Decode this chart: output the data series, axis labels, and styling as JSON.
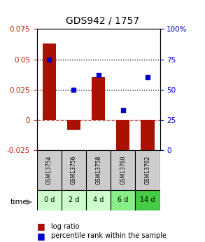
{
  "title": "GDS942 / 1757",
  "samples": [
    "GSM13754",
    "GSM13756",
    "GSM13758",
    "GSM13760",
    "GSM13762"
  ],
  "time_labels": [
    "0 d",
    "2 d",
    "4 d",
    "6 d",
    "14 d"
  ],
  "log_ratios": [
    0.063,
    -0.008,
    0.035,
    -0.032,
    -0.035
  ],
  "percentile_ranks": [
    75,
    50,
    62,
    33,
    60
  ],
  "ylim_left": [
    -0.025,
    0.075
  ],
  "ylim_right": [
    0,
    100
  ],
  "yticks_left": [
    -0.025,
    0,
    0.025,
    0.05,
    0.075
  ],
  "yticks_right": [
    0,
    25,
    50,
    75,
    100
  ],
  "hlines_dotted": [
    0.025,
    0.05
  ],
  "hline_dashed": 0,
  "bar_color": "#aa1100",
  "dot_color": "#0000cc",
  "bar_width": 0.55,
  "sample_box_color": "#cccccc",
  "time_box_colors": [
    "#ccffcc",
    "#ccffcc",
    "#ccffcc",
    "#88ee88",
    "#44cc44"
  ],
  "legend_bar_label": "log ratio",
  "legend_dot_label": "percentile rank within the sample",
  "xlabel_time": "time",
  "left_axis_color": "#cc2200",
  "right_axis_color": "#0000cc"
}
